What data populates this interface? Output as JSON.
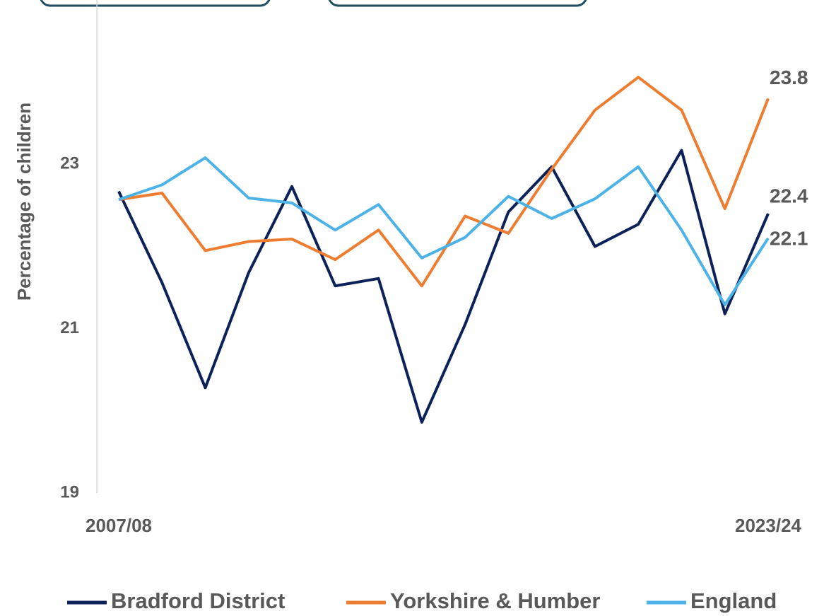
{
  "chart_data": {
    "type": "line",
    "y_label": "Percentage of children",
    "categories": [
      "2007/08",
      null,
      null,
      null,
      null,
      null,
      null,
      null,
      null,
      null,
      null,
      null,
      null,
      null,
      null,
      "2023/24"
    ],
    "series": [
      {
        "name": "Bradford District",
        "color": "#0b2158",
        "values": [
          22.67,
          21.56,
          20.28,
          21.68,
          22.73,
          21.52,
          21.61,
          19.86,
          21.05,
          22.42,
          22.97,
          22.0,
          22.27,
          23.17,
          21.18,
          22.4
        ]
      },
      {
        "name": "Yorkshire & Humber",
        "color": "#ed7d31",
        "values": [
          22.57,
          22.65,
          21.95,
          22.06,
          22.09,
          21.84,
          22.2,
          21.52,
          22.37,
          22.16,
          22.94,
          23.66,
          24.06,
          23.66,
          22.46,
          23.8
        ]
      },
      {
        "name": "England",
        "color": "#4db3e6",
        "values": [
          22.57,
          22.75,
          23.08,
          22.59,
          22.53,
          22.2,
          22.51,
          21.86,
          22.11,
          22.61,
          22.34,
          22.58,
          22.97,
          22.2,
          21.29,
          22.1
        ]
      }
    ],
    "ylim": [
      19,
      25
    ],
    "yticks": [
      19,
      21,
      23
    ],
    "grid": false,
    "legend": "bottom"
  }
}
